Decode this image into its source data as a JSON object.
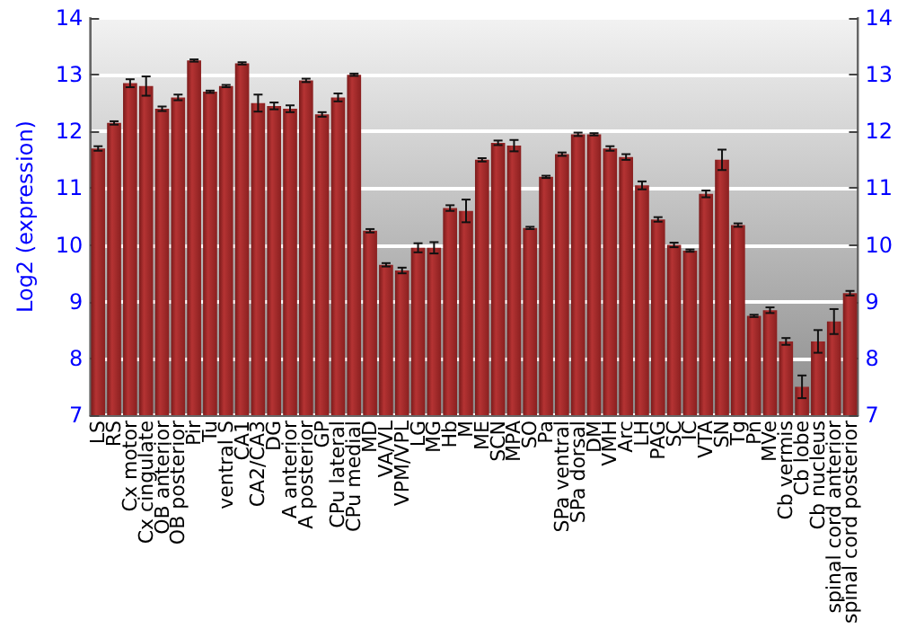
{
  "chart_data": {
    "type": "bar",
    "ylabel": "Log2 (expression)",
    "categories": [
      "LS",
      "RS",
      "Cx motor",
      "Cx cingulate",
      "OB anterior",
      "OB posterior",
      "Pir",
      "Tu",
      "ventral S",
      "CA1",
      "CA2/CA3",
      "DG",
      "A anterior",
      "A posterior",
      "GP",
      "CPu lateral",
      "CPu medial",
      "MD",
      "VA/VL",
      "VPM/VPL",
      "LG",
      "MG",
      "Hb",
      "M",
      "ME",
      "SCN",
      "MPA",
      "SO",
      "Pa",
      "SPa ventral",
      "SPa dorsal",
      "DM",
      "VMH",
      "Arc",
      "LH",
      "PAG",
      "SC",
      "IC",
      "VTA",
      "SN",
      "Tg",
      "Pn",
      "MVe",
      "Cb vermis",
      "Cb lobe",
      "Cb nucleus",
      "spinal cord anterior",
      "spinal cord posterior"
    ],
    "values": [
      11.7,
      12.15,
      12.85,
      12.8,
      12.4,
      12.6,
      13.25,
      12.7,
      12.8,
      13.2,
      12.5,
      12.45,
      12.4,
      12.9,
      12.3,
      12.6,
      13.0,
      10.25,
      9.65,
      9.55,
      9.95,
      9.95,
      10.65,
      10.6,
      11.5,
      11.8,
      11.75,
      10.3,
      11.2,
      11.6,
      11.95,
      11.95,
      11.7,
      11.55,
      11.05,
      10.45,
      10.0,
      9.9,
      10.9,
      11.5,
      10.35,
      8.75,
      8.85,
      8.3,
      7.5,
      8.3,
      8.65,
      9.15
    ],
    "errors": [
      0.04,
      0.03,
      0.07,
      0.17,
      0.04,
      0.05,
      0.02,
      0.02,
      0.02,
      0.02,
      0.15,
      0.06,
      0.06,
      0.03,
      0.04,
      0.07,
      0.02,
      0.03,
      0.03,
      0.05,
      0.08,
      0.1,
      0.05,
      0.2,
      0.03,
      0.04,
      0.1,
      0.02,
      0.02,
      0.03,
      0.03,
      0.02,
      0.04,
      0.05,
      0.07,
      0.04,
      0.04,
      0.02,
      0.06,
      0.18,
      0.03,
      0.02,
      0.05,
      0.06,
      0.2,
      0.2,
      0.22,
      0.04
    ],
    "color": "#b53333",
    "ylim": [
      7,
      14
    ],
    "yticks": [
      7,
      8,
      9,
      10,
      11,
      12,
      13,
      14
    ],
    "y2lim": [
      7,
      14
    ],
    "y2ticks": [
      7,
      8,
      9,
      10,
      11,
      12,
      13,
      14
    ],
    "grid": "y"
  }
}
